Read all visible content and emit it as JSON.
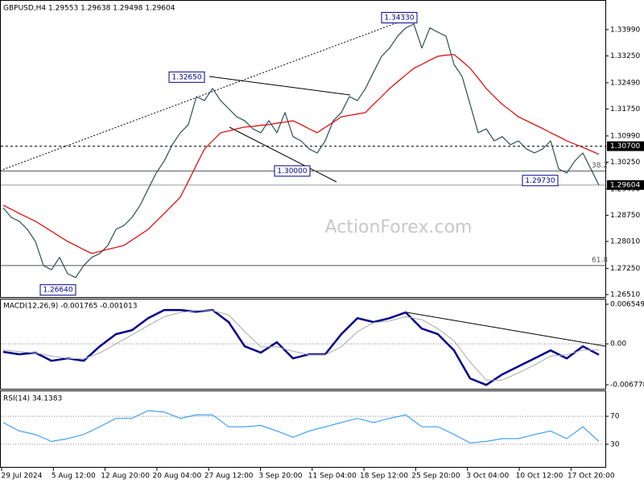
{
  "chart_data": [
    {
      "type": "line",
      "title": "GBPUSD,H4  1.29553 1.29638 1.29498 1.29604",
      "watermark": "ActionForex.com",
      "ylim": [
        1.2644,
        1.3476
      ],
      "yticks": [
        {
          "value": 1.3399,
          "label": "1.33990"
        },
        {
          "value": 1.3325,
          "label": "1.33250"
        },
        {
          "value": 1.3249,
          "label": "1.32490"
        },
        {
          "value": 1.3175,
          "label": "1.31750"
        },
        {
          "value": 1.3099,
          "label": "1.30990"
        },
        {
          "value": 1.3025,
          "label": "1.30250"
        },
        {
          "value": 1.2949,
          "label": "1.29490"
        },
        {
          "value": 1.2875,
          "label": "1.28750"
        },
        {
          "value": 1.2801,
          "label": "1.28010"
        },
        {
          "value": 1.2725,
          "label": "1.27250"
        },
        {
          "value": 1.2651,
          "label": "1.26510"
        }
      ],
      "series": [
        {
          "color": "#2f4f4f",
          "values": [
            1.2896,
            1.2869,
            1.2858,
            1.2835,
            1.2801,
            1.2733,
            1.2721,
            1.2756,
            1.271,
            1.2699,
            1.2733,
            1.2756,
            1.2767,
            1.279,
            1.2835,
            1.2846,
            1.2869,
            1.2903,
            1.2949,
            1.2994,
            1.3028,
            1.3074,
            1.3108,
            1.3131,
            1.321,
            1.3199,
            1.3233,
            1.3199,
            1.3176,
            1.3153,
            1.3142,
            1.3119,
            1.3108,
            1.3142,
            1.3108,
            1.3165,
            1.3097,
            1.3085,
            1.3062,
            1.3051,
            1.3085,
            1.3142,
            1.3165,
            1.321,
            1.3199,
            1.3233,
            1.3279,
            1.3324,
            1.3347,
            1.3381,
            1.3404,
            1.3415,
            1.3347,
            1.3404,
            1.3392,
            1.3381,
            1.3301,
            1.3267,
            1.3188,
            1.3108,
            1.3119,
            1.3085,
            1.3097,
            1.3074,
            1.3085,
            1.3062,
            1.3051,
            1.3062,
            1.3085,
            1.3006,
            1.2994,
            1.3028,
            1.3051,
            1.3006,
            1.296
          ]
        },
        {
          "color": "#e00000",
          "values": [
            1.2903,
            1.2892,
            1.288,
            1.2869,
            1.2858,
            1.2844,
            1.283,
            1.2815,
            1.2801,
            1.279,
            1.2778,
            1.2767,
            1.2773,
            1.2779,
            1.2784,
            1.279,
            1.2805,
            1.282,
            1.2835,
            1.2858,
            1.288,
            1.2903,
            1.2926,
            1.2971,
            1.3017,
            1.3062,
            1.3085,
            1.3108,
            1.3113,
            1.3119,
            1.3124,
            1.3126,
            1.3129,
            1.3131,
            1.3135,
            1.3138,
            1.3142,
            1.3131,
            1.3119,
            1.3108,
            1.3123,
            1.3138,
            1.3153,
            1.3157,
            1.3161,
            1.3165,
            1.3188,
            1.321,
            1.3233,
            1.3252,
            1.3271,
            1.329,
            1.3301,
            1.3313,
            1.3324,
            1.3327,
            1.3329,
            1.331,
            1.329,
            1.3262,
            1.3233,
            1.321,
            1.3188,
            1.3171,
            1.3153,
            1.3142,
            1.3131,
            1.312,
            1.3108,
            1.3097,
            1.3085,
            1.3076,
            1.3067,
            1.3057,
            1.3047
          ]
        }
      ],
      "price_labels": [
        {
          "value": 1.307,
          "label": "1.30700"
        },
        {
          "value": 1.29604,
          "label": "1.29604"
        }
      ],
      "annotations": [
        {
          "value": 1.3433,
          "label": "1.34330"
        },
        {
          "value": 1.3265,
          "label": "1.32650"
        },
        {
          "value": 1.3,
          "label": "1.30000"
        },
        {
          "value": 1.2973,
          "label": "1.29730"
        },
        {
          "value": 1.2664,
          "label": "1.26640"
        }
      ],
      "fib_levels": [
        {
          "ratio": 38.2,
          "price": 1.3
        },
        {
          "ratio": 61.8,
          "price": 1.2733
        }
      ]
    },
    {
      "type": "line",
      "title": "MACD(12,26,9) -0.001765 -0.001013",
      "ylim": [
        -0.00731,
        0.00735
      ],
      "yticks": [
        0.006549,
        {
          "value": 0,
          "label": "0.00"
        },
        -0.006778
      ],
      "reference_line": 0,
      "series": [
        {
          "color": "#00008b",
          "width": 2.5,
          "values": [
            -0.00133,
            -0.00173,
            -0.00146,
            -0.0028,
            -0.0024,
            -0.0028,
            -0.0004,
            0.0016,
            0.00227,
            0.00426,
            0.0056,
            0.0056,
            0.00533,
            0.0056,
            0.0036,
            -0.0004,
            -0.00146,
            0.00027,
            -0.0024,
            -0.00173,
            -0.00173,
            0.0016,
            0.00426,
            0.0036,
            0.00426,
            0.0052,
            0.00253,
            0.0016,
            -0.00107,
            -0.00573,
            -0.0068,
            -0.00506,
            -0.00373,
            -0.0024,
            -0.00107,
            -0.0024,
            -0.0004,
            -0.0018
          ]
        },
        {
          "color": "#a9a9a9",
          "width": 1,
          "values": [
            -0.001,
            -0.0013,
            -0.0015,
            -0.002,
            -0.0024,
            -0.0025,
            -0.0015,
            0,
            0.0015,
            0.003,
            0.0045,
            0.0052,
            0.0055,
            0.0055,
            0.0048,
            0.002,
            -0.0005,
            -0.0005,
            -0.0012,
            -0.0018,
            -0.0018,
            -0.0005,
            0.002,
            0.0035,
            0.0038,
            0.0045,
            0.004,
            0.0025,
            0.0005,
            -0.003,
            -0.006,
            -0.006,
            -0.0048,
            -0.0035,
            -0.002,
            -0.0018,
            -0.001,
            -0.001
          ]
        }
      ]
    },
    {
      "type": "line",
      "title": "RSI(14) 34.1383",
      "ylim": [
        0,
        100
      ],
      "yticks": [
        70,
        30
      ],
      "grid": true,
      "series": [
        {
          "color": "#1e90ff",
          "width": 1,
          "values": [
            61,
            49,
            44,
            34,
            38,
            44,
            55,
            67,
            67,
            78,
            76,
            67,
            72,
            72,
            55,
            55,
            57,
            49,
            40,
            49,
            55,
            61,
            67,
            61,
            67,
            72,
            55,
            55,
            44,
            32,
            34,
            38,
            38,
            44,
            49,
            38,
            55,
            34
          ]
        }
      ]
    }
  ],
  "time_axis": [
    "29 Jul 2024",
    "5 Aug 12:00",
    "12 Aug 20:00",
    "20 Aug 04:00",
    "27 Aug 12:00",
    "3 Sep 20:00",
    "11 Sep 04:00",
    "18 Sep 12:00",
    "25 Sep 20:00",
    "3 Oct 04:00",
    "10 Oct 12:00",
    "17 Oct 20:00"
  ]
}
